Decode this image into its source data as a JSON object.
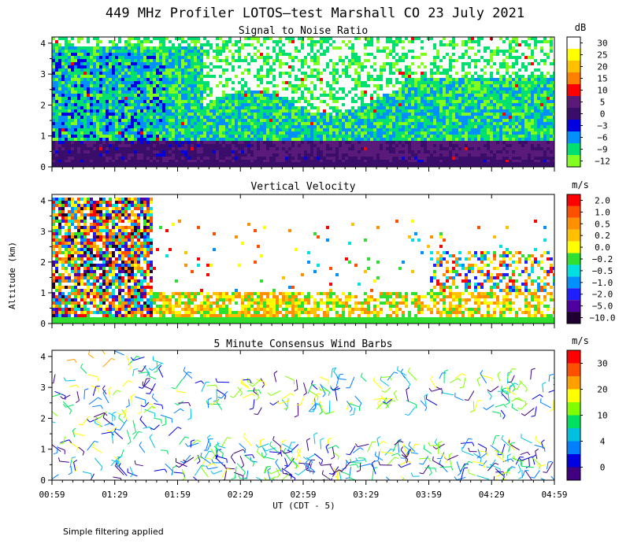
{
  "title": "449 MHz Profiler LOTOS—test Marshall CO 23 July 2021",
  "ylabel": "Altitude (km)",
  "xlabel": "UT  (CDT - 5)",
  "footnote": "Simple filtering applied",
  "chart_data": [
    {
      "type": "heatmap",
      "title": "Signal to Noise Ratio",
      "unit": "dB",
      "x_ticks": [
        "00:59",
        "01:29",
        "01:59",
        "02:29",
        "02:59",
        "03:29",
        "03:59",
        "04:29",
        "04:59"
      ],
      "y_ticks": [
        "0",
        "1",
        "2",
        "3",
        "4"
      ],
      "ylim": [
        0,
        4.2
      ],
      "colorbar": {
        "labels": [
          "30",
          "25",
          "20",
          "15",
          "10",
          "5",
          "0",
          "−3",
          "−6",
          "−9",
          "−12"
        ],
        "colors": [
          "#ffffff",
          "#ffff00",
          "#ffc000",
          "#ff8000",
          "#ff0000",
          "#5a1a7a",
          "#3a0d6a",
          "#0000e0",
          "#0090ff",
          "#00e070",
          "#80ff20"
        ]
      }
    },
    {
      "type": "heatmap",
      "title": "Vertical Velocity",
      "unit": "m/s",
      "x_ticks": [
        "00:59",
        "01:29",
        "01:59",
        "02:29",
        "02:59",
        "03:29",
        "03:59",
        "04:29",
        "04:59"
      ],
      "y_ticks": [
        "0",
        "1",
        "2",
        "3",
        "4"
      ],
      "ylim": [
        0,
        4.2
      ],
      "colorbar": {
        "labels": [
          "2.0",
          "1.0",
          "0.5",
          "0.2",
          "0.0",
          "−0.2",
          "−0.5",
          "−1.0",
          "−2.0",
          "−5.0",
          "−10.0"
        ],
        "colors": [
          "#ff0000",
          "#ff5000",
          "#ff9000",
          "#ffc000",
          "#ffff00",
          "#30e030",
          "#00e0e0",
          "#0090ff",
          "#2020ff",
          "#5000a0",
          "#200030"
        ]
      }
    },
    {
      "type": "scatter",
      "title": "5 Minute Consensus Wind Barbs",
      "unit": "m/s",
      "x_ticks": [
        "00:59",
        "01:29",
        "01:59",
        "02:29",
        "02:59",
        "03:29",
        "03:59",
        "04:29",
        "04:59"
      ],
      "y_ticks": [
        "0",
        "1",
        "2",
        "3",
        "4"
      ],
      "ylim": [
        0,
        4.2
      ],
      "colorbar": {
        "labels": [
          "30",
          "20",
          "10",
          "4",
          "0"
        ],
        "colors": [
          "#ff0000",
          "#ff5000",
          "#ffa000",
          "#ffff00",
          "#80ff00",
          "#00e060",
          "#00c0e0",
          "#0080ff",
          "#0000e0",
          "#400080"
        ]
      }
    }
  ]
}
